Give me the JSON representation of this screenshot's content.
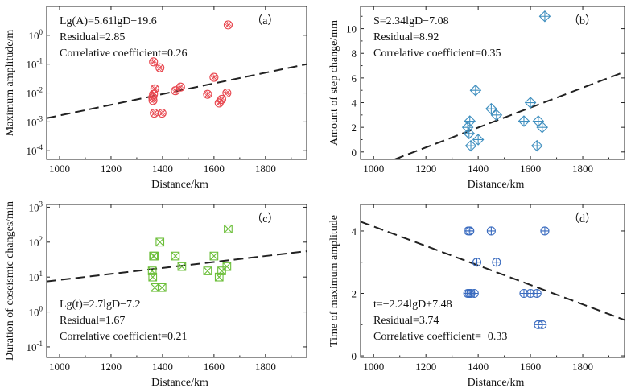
{
  "chart_data": [
    {
      "type": "scatter",
      "panel_label": "（a）",
      "xlabel": "Distance/km",
      "ylabel": "Maximum amplitude/m",
      "xlim": [
        950,
        1960
      ],
      "ylim": [
        5e-05,
        10
      ],
      "yscale": "log",
      "xticks": [
        "1000",
        "1200",
        "1400",
        "1600",
        "1800"
      ],
      "yticks": [
        "10^0",
        "10^-1",
        "10^-2",
        "10^-3",
        "10^-4"
      ],
      "annotations": [
        "Lg(A)=5.61lgD−19.6",
        "Residual=2.85",
        "Correlative coefficient=0.26"
      ],
      "marker": "circle-x",
      "color": "#e8474f",
      "points": [
        [
          1365,
          0.12
        ],
        [
          1370,
          0.014
        ],
        [
          1365,
          0.009
        ],
        [
          1362,
          0.007
        ],
        [
          1363,
          0.0055
        ],
        [
          1368,
          0.002
        ],
        [
          1390,
          0.075
        ],
        [
          1398,
          0.002
        ],
        [
          1450,
          0.012
        ],
        [
          1470,
          0.016
        ],
        [
          1575,
          0.009
        ],
        [
          1600,
          0.035
        ],
        [
          1620,
          0.0045
        ],
        [
          1630,
          0.006
        ],
        [
          1650,
          0.01
        ],
        [
          1655,
          2.3
        ]
      ],
      "fit": {
        "x": [
          950,
          1960
        ],
        "y": [
          0.00134,
          0.1
        ]
      }
    },
    {
      "type": "scatter",
      "panel_label": "（b）",
      "xlabel": "Distance/km",
      "ylabel": "Amount of step change/mm",
      "xlim": [
        950,
        1960
      ],
      "ylim": [
        -0.6,
        11.8
      ],
      "yscale": "linear",
      "xticks": [
        "1000",
        "1200",
        "1400",
        "1600",
        "1800"
      ],
      "yticks": [
        "0",
        "2",
        "4",
        "6",
        "8",
        "10"
      ],
      "annotations": [
        "S=2.34lgD−7.08",
        "Residual=8.92",
        "Correlative coefficient=0.35"
      ],
      "marker": "diamond-plus",
      "color": "#3f8fbf",
      "points": [
        [
          1360,
          2.0
        ],
        [
          1365,
          1.5
        ],
        [
          1368,
          2.5
        ],
        [
          1372,
          0.5
        ],
        [
          1390,
          5.0
        ],
        [
          1400,
          1.0
        ],
        [
          1450,
          3.5
        ],
        [
          1470,
          3.0
        ],
        [
          1575,
          2.5
        ],
        [
          1600,
          4.0
        ],
        [
          1625,
          0.5
        ],
        [
          1630,
          2.5
        ],
        [
          1645,
          2.0
        ],
        [
          1655,
          11.0
        ]
      ],
      "fit": {
        "x": [
          1080,
          1960
        ],
        "y": [
          -0.6,
          6.5
        ]
      }
    },
    {
      "type": "scatter",
      "panel_label": "（c）",
      "xlabel": "Distance/km",
      "ylabel": "Duration of coseismic changes/min",
      "xlim": [
        950,
        1960
      ],
      "ylim": [
        0.05,
        1200
      ],
      "yscale": "log",
      "xticks": [
        "1000",
        "1200",
        "1400",
        "1600",
        "1800"
      ],
      "yticks": [
        "10^3",
        "10^2",
        "10^1",
        "10^0",
        "10^-1"
      ],
      "annotations": [
        "Lg(t)=2.7lgD−7.2",
        "Residual=1.67",
        "Correlative coefficient=0.21"
      ],
      "marker": "square-x",
      "color": "#6cbf3a",
      "points": [
        [
          1360,
          15
        ],
        [
          1362,
          10
        ],
        [
          1365,
          40
        ],
        [
          1368,
          40
        ],
        [
          1370,
          5
        ],
        [
          1390,
          100
        ],
        [
          1398,
          5
        ],
        [
          1450,
          40
        ],
        [
          1475,
          20
        ],
        [
          1575,
          15
        ],
        [
          1600,
          40
        ],
        [
          1620,
          10
        ],
        [
          1630,
          15
        ],
        [
          1650,
          20
        ],
        [
          1655,
          240
        ]
      ],
      "fit": {
        "x": [
          950,
          1960
        ],
        "y": [
          7.5,
          55
        ]
      }
    },
    {
      "type": "scatter",
      "panel_label": "（d）",
      "xlabel": "Distance/km",
      "ylabel": "Time of maximum amplitude",
      "xlim": [
        950,
        1960
      ],
      "ylim": [
        -0.05,
        4.85
      ],
      "yscale": "linear",
      "xticks": [
        "1000",
        "1200",
        "1400",
        "1600",
        "1800"
      ],
      "yticks": [
        "0",
        "2",
        "4"
      ],
      "annotations": [
        "t=−2.24lgD+7.48",
        "Residual=3.74",
        "Correlative coefficient=−0.33"
      ],
      "marker": "circle-plus",
      "color": "#3a6bbf",
      "points": [
        [
          1362,
          4
        ],
        [
          1368,
          4
        ],
        [
          1360,
          2
        ],
        [
          1366,
          2
        ],
        [
          1372,
          2
        ],
        [
          1385,
          2
        ],
        [
          1395,
          3
        ],
        [
          1450,
          4
        ],
        [
          1470,
          3
        ],
        [
          1575,
          2
        ],
        [
          1600,
          2
        ],
        [
          1625,
          2
        ],
        [
          1630,
          1
        ],
        [
          1645,
          1
        ],
        [
          1655,
          4
        ]
      ],
      "fit": {
        "x": [
          950,
          1960
        ],
        "y": [
          4.3,
          1.15
        ]
      }
    }
  ]
}
